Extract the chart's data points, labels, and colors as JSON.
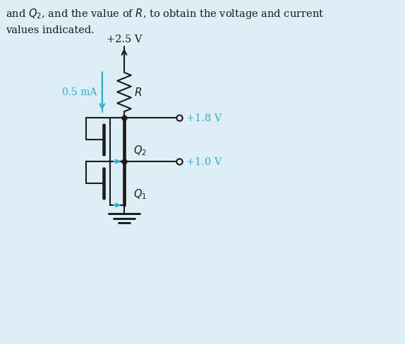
{
  "bg_color": "#ddeef6",
  "text_color_black": "#1a1a1a",
  "text_color_cyan": "#2ab0d8",
  "line_color": "#1a1a1a",
  "title_line1": "and $Q_2$, and the value of $R$, to obtain the voltage and current",
  "title_line2": "values indicated.",
  "vdd_label": "+2.5 V",
  "current_label": "0.5 mA",
  "R_label": "$R$",
  "Q2_label": "$Q_2$",
  "Q1_label": "$Q_1$",
  "v1_label": "+1.8 V",
  "v2_label": "+1.0 V",
  "figsize": [
    5.74,
    4.89
  ],
  "dpi": 100
}
